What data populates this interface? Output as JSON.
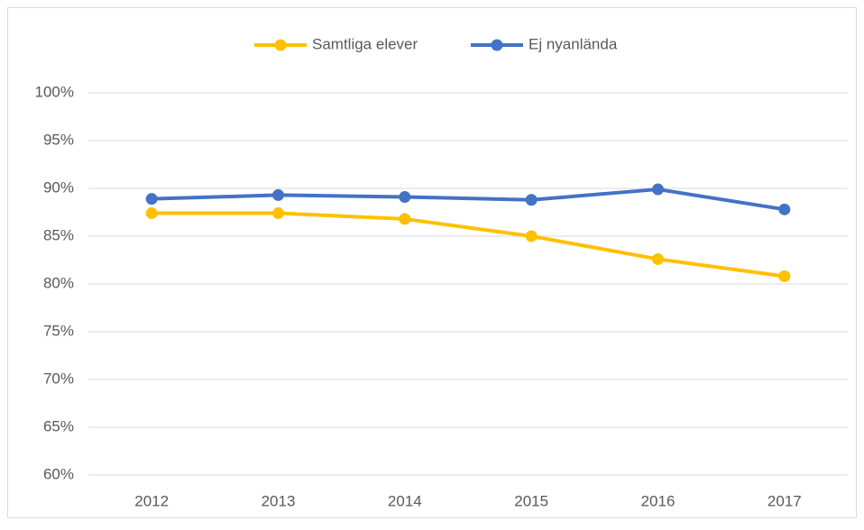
{
  "chart_data": {
    "type": "line",
    "categories": [
      "2012",
      "2013",
      "2014",
      "2015",
      "2016",
      "2017"
    ],
    "series": [
      {
        "name": "Samtliga elever",
        "color": "#FFC000",
        "values": [
          87.4,
          87.4,
          86.8,
          85.0,
          82.6,
          80.8
        ]
      },
      {
        "name": "Ej nyanlända",
        "color": "#4472C4",
        "values": [
          88.9,
          89.3,
          89.1,
          88.8,
          89.9,
          87.8
        ]
      }
    ],
    "ylim": [
      60,
      100
    ],
    "yticks": [
      {
        "value": 60,
        "label": "60%"
      },
      {
        "value": 65,
        "label": "65%"
      },
      {
        "value": 70,
        "label": "70%"
      },
      {
        "value": 75,
        "label": "75%"
      },
      {
        "value": 80,
        "label": "80%"
      },
      {
        "value": 85,
        "label": "85%"
      },
      {
        "value": 90,
        "label": "90%"
      },
      {
        "value": 95,
        "label": "95%"
      },
      {
        "value": 100,
        "label": "100%"
      }
    ],
    "grid": true,
    "legend": "top"
  }
}
